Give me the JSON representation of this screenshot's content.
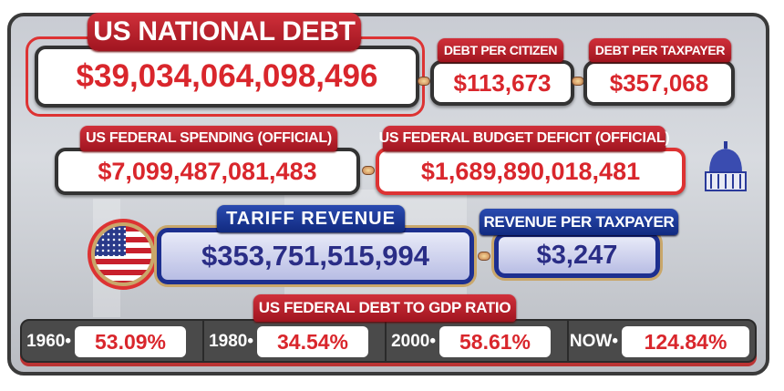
{
  "national_debt": {
    "label": "US NATIONAL DEBT",
    "value": "$39,034,064,098,496"
  },
  "debt_per_citizen": {
    "label": "DEBT PER CITIZEN",
    "value": "$113,673"
  },
  "debt_per_taxpayer": {
    "label": "DEBT PER TAXPAYER",
    "value": "$357,068"
  },
  "federal_spending": {
    "label": "US FEDERAL SPENDING (OFFICIAL)",
    "value": "$7,099,487,081,483"
  },
  "budget_deficit": {
    "label": "US FEDERAL BUDGET DEFICIT (OFFICIAL)",
    "value": "$1,689,890,018,481"
  },
  "tariff_revenue": {
    "label": "TARIFF REVENUE",
    "value": "$353,751,515,994"
  },
  "revenue_per_taxpayer": {
    "label": "REVENUE PER TAXPAYER",
    "value": "$3,247"
  },
  "debt_to_gdp": {
    "label": "US FEDERAL DEBT TO GDP RATIO",
    "items": [
      {
        "year": "1960",
        "value": "53.09%"
      },
      {
        "year": "1980",
        "value": "34.54%"
      },
      {
        "year": "2000",
        "value": "58.61%"
      },
      {
        "year": "NOW",
        "value": "124.84%"
      }
    ]
  },
  "icons": {
    "flag": "us-flag-icon",
    "capitol": "capitol-dome-icon"
  },
  "colors": {
    "red": "#d9262c",
    "blue": "#1d2f8f",
    "value_blue": "#2a2d86"
  }
}
